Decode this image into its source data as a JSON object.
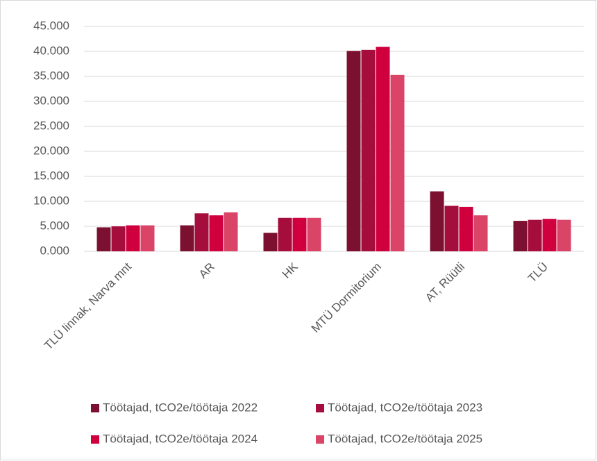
{
  "chart_data": {
    "type": "bar",
    "categories": [
      "TLÜ linnak, Narva mnt",
      "AR",
      "HK",
      "MTÜ Dormitorium",
      "AT, Rüütli",
      "TLÜ"
    ],
    "series": [
      {
        "name": "Töötajad, tCO2e/töötaja 2022",
        "color": "#7b1030",
        "values": [
          4.8,
          5.2,
          3.7,
          40.1,
          12.0,
          6.1
        ]
      },
      {
        "name": "Töötajad, tCO2e/töötaja 2023",
        "color": "#a50d3d",
        "values": [
          5.0,
          7.6,
          6.7,
          40.3,
          9.1,
          6.3
        ]
      },
      {
        "name": "Töötajad, tCO2e/töötaja 2024",
        "color": "#d0003f",
        "values": [
          5.2,
          7.2,
          6.7,
          40.9,
          8.9,
          6.5
        ]
      },
      {
        "name": "Töötajad, tCO2e/töötaja 2025",
        "color": "#d94467",
        "values": [
          5.2,
          7.8,
          6.7,
          35.3,
          7.2,
          6.3
        ]
      }
    ],
    "ylim": [
      0,
      45
    ],
    "yticks": [
      {
        "value": 0,
        "label": "0.000"
      },
      {
        "value": 5,
        "label": "5.000"
      },
      {
        "value": 10,
        "label": "10.000"
      },
      {
        "value": 15,
        "label": "15.000"
      },
      {
        "value": 20,
        "label": "20.000"
      },
      {
        "value": 25,
        "label": "25.000"
      },
      {
        "value": 30,
        "label": "30.000"
      },
      {
        "value": 35,
        "label": "35.000"
      },
      {
        "value": 40,
        "label": "40.000"
      },
      {
        "value": 45,
        "label": "45.000"
      }
    ],
    "grid": true,
    "legend": "bottom"
  }
}
